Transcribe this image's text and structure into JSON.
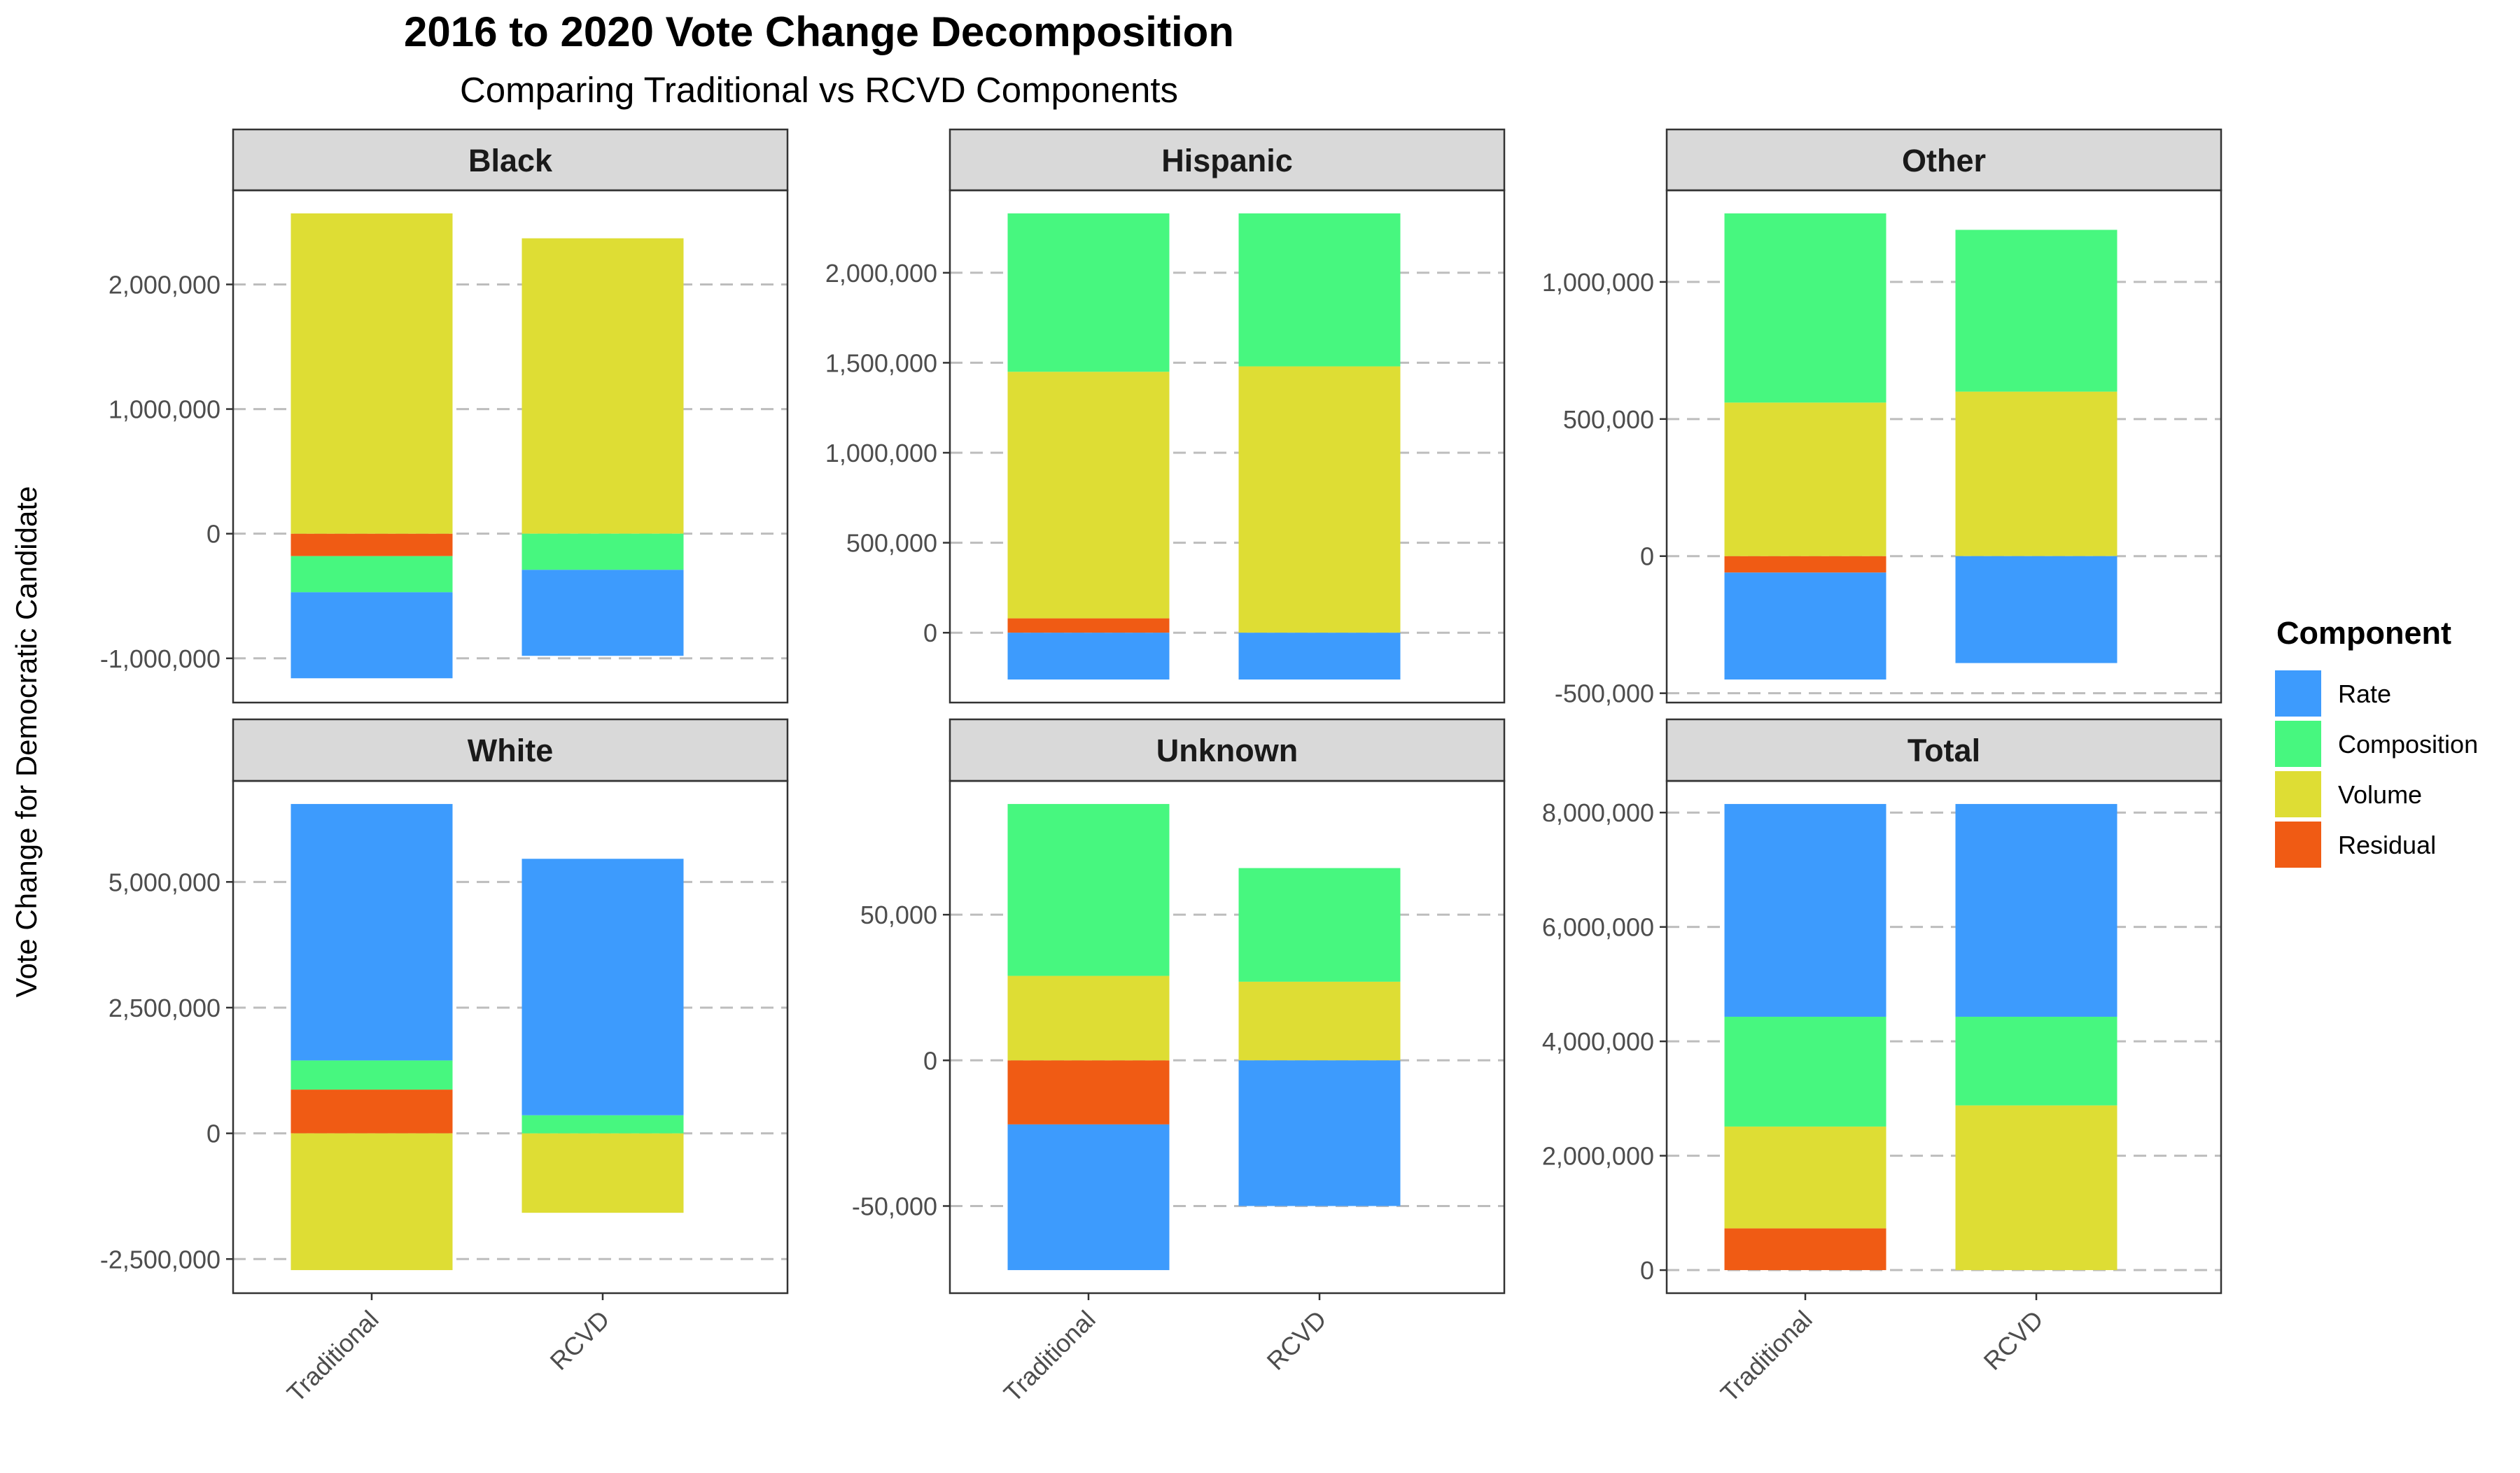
{
  "title": "2016 to 2020 Vote Change Decomposition",
  "subtitle": "Comparing Traditional vs RCVD Components",
  "ylabel": "Vote Change for Democratic Candidate",
  "legend": {
    "title": "Component",
    "position": "right",
    "items": [
      {
        "name": "Rate",
        "color": "#3D9BFD"
      },
      {
        "name": "Composition",
        "color": "#47F77F"
      },
      {
        "name": "Volume",
        "color": "#DEDD34"
      },
      {
        "name": "Residual",
        "color": "#F05B14"
      }
    ]
  },
  "chart_data": {
    "type": "bar",
    "stacked": true,
    "grid": "dashed horizontal major",
    "categories": [
      "Traditional",
      "RCVD"
    ],
    "panels": [
      {
        "name": "Black",
        "ylim": [
          -1170000,
          2570000
        ],
        "ticks": [
          -1000000,
          0,
          1000000,
          2000000
        ],
        "tick_labels": [
          "-1,000,000",
          "0",
          "1,000,000",
          "2,000,000"
        ],
        "series": [
          {
            "name": "Rate",
            "values": [
              -690000,
              -690000
            ]
          },
          {
            "name": "Composition",
            "values": [
              -290000,
              -290000
            ]
          },
          {
            "name": "Volume",
            "values": [
              2570000,
              2370000
            ]
          },
          {
            "name": "Residual",
            "values": [
              -180000,
              0
            ]
          }
        ]
      },
      {
        "name": "Hispanic",
        "ylim": [
          -260000,
          2330000
        ],
        "ticks": [
          0,
          500000,
          1000000,
          1500000,
          2000000
        ],
        "tick_labels": [
          "0",
          "500,000",
          "1,000,000",
          "1,500,000",
          "2,000,000"
        ],
        "series": [
          {
            "name": "Rate",
            "values": [
              -260000,
              -260000
            ]
          },
          {
            "name": "Composition",
            "values": [
              880000,
              850000
            ]
          },
          {
            "name": "Volume",
            "values": [
              1370000,
              1480000
            ]
          },
          {
            "name": "Residual",
            "values": [
              80000,
              0
            ]
          }
        ]
      },
      {
        "name": "Other",
        "ylim": [
          -450000,
          1250000
        ],
        "ticks": [
          -500000,
          0,
          500000,
          1000000
        ],
        "tick_labels": [
          "-500,000",
          "0",
          "500,000",
          "1,000,000"
        ],
        "series": [
          {
            "name": "Rate",
            "values": [
              -390000,
              -390000
            ]
          },
          {
            "name": "Composition",
            "values": [
              690000,
              590000
            ]
          },
          {
            "name": "Volume",
            "values": [
              560000,
              600000
            ]
          },
          {
            "name": "Residual",
            "values": [
              -60000,
              0
            ]
          }
        ]
      },
      {
        "name": "White",
        "ylim": [
          -2720000,
          6550000
        ],
        "ticks": [
          -2500000,
          0,
          2500000,
          5000000
        ],
        "tick_labels": [
          "-2,500,000",
          "0",
          "2,500,000",
          "5,000,000"
        ],
        "series": [
          {
            "name": "Rate",
            "values": [
              5100000,
              5100000
            ]
          },
          {
            "name": "Composition",
            "values": [
              580000,
              360000
            ]
          },
          {
            "name": "Volume",
            "values": [
              -2720000,
              -1580000
            ]
          },
          {
            "name": "Residual",
            "values": [
              870000,
              0
            ]
          }
        ]
      },
      {
        "name": "Unknown",
        "ylim": [
          -72000,
          88000
        ],
        "ticks": [
          -50000,
          0,
          50000
        ],
        "tick_labels": [
          "-50,000",
          "0",
          "50,000"
        ],
        "series": [
          {
            "name": "Rate",
            "values": [
              -50000,
              -50000
            ]
          },
          {
            "name": "Composition",
            "values": [
              59000,
              39000
            ]
          },
          {
            "name": "Volume",
            "values": [
              29000,
              27000
            ]
          },
          {
            "name": "Residual",
            "values": [
              -22000,
              0
            ]
          }
        ]
      },
      {
        "name": "Total",
        "ylim": [
          0,
          8150000
        ],
        "ticks": [
          0,
          2000000,
          4000000,
          6000000,
          8000000
        ],
        "tick_labels": [
          "0",
          "2,000,000",
          "4,000,000",
          "6,000,000",
          "8,000,000"
        ],
        "series": [
          {
            "name": "Rate",
            "values": [
              3720000,
              3720000
            ]
          },
          {
            "name": "Composition",
            "values": [
              1920000,
              1550000
            ]
          },
          {
            "name": "Volume",
            "values": [
              1780000,
              2880000
            ]
          },
          {
            "name": "Residual",
            "values": [
              730000,
              0
            ]
          }
        ]
      }
    ]
  }
}
